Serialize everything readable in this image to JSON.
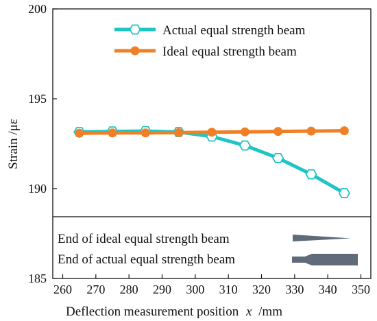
{
  "chart_data": {
    "type": "line",
    "title": "",
    "xlabel": "Deflection  measurement position",
    "xlabel_var": "x",
    "xlabel_unit": "/mm",
    "ylabel": "Strain /με",
    "xlim": [
      257,
      353
    ],
    "ylim": [
      185,
      200
    ],
    "x_ticks": [
      260,
      270,
      280,
      290,
      300,
      310,
      320,
      330,
      340,
      350
    ],
    "y_ticks": [
      185,
      190,
      195,
      200
    ],
    "x": [
      265,
      275,
      285,
      295,
      305,
      315,
      325,
      335,
      345
    ],
    "series": [
      {
        "name": "Actual equal strength beam",
        "color": "#1fc4c4",
        "marker": "hexagon-open",
        "values": [
          193.15,
          193.18,
          193.2,
          193.15,
          192.9,
          192.4,
          191.7,
          190.8,
          189.75
        ]
      },
      {
        "name": "Ideal equal strength beam",
        "color": "#f07f26",
        "marker": "circle-filled",
        "values": [
          193.08,
          193.1,
          193.1,
          193.12,
          193.14,
          193.16,
          193.18,
          193.2,
          193.22
        ]
      }
    ],
    "legend_position": "top-right",
    "grid": false,
    "inset": {
      "lines": [
        "End of ideal equal strength beam",
        "End of actual equal strength beam"
      ],
      "shape_color": "#5f6b78"
    }
  }
}
